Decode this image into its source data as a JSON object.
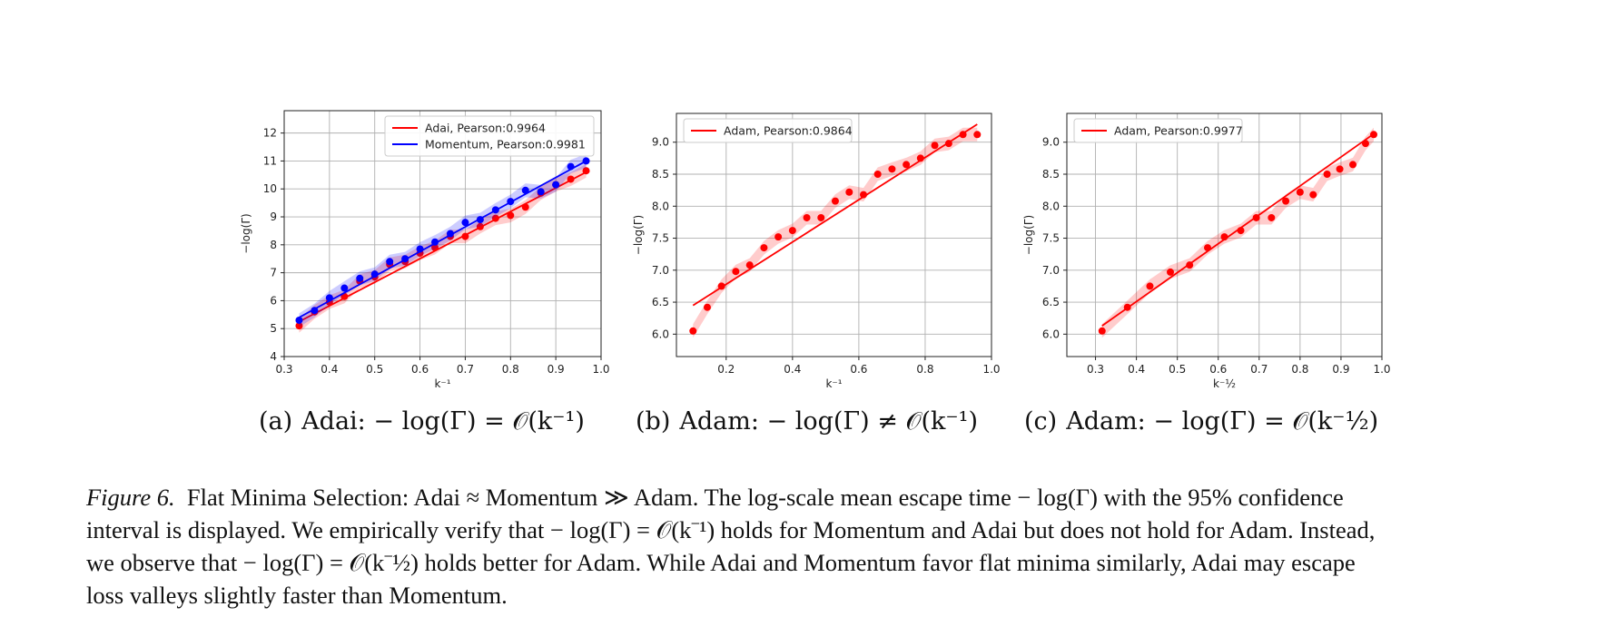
{
  "chart_data": [
    {
      "type": "scatter",
      "xlabel": "k⁻¹",
      "ylabel": "−log(Γ)",
      "xlim": [
        0.3,
        1.0
      ],
      "ylim": [
        4,
        12.8
      ],
      "xticks": [
        "0.3",
        "0.4",
        "0.5",
        "0.6",
        "0.7",
        "0.8",
        "0.9",
        "1.0"
      ],
      "yticks": [
        "4",
        "5",
        "6",
        "7",
        "8",
        "9",
        "10",
        "11",
        "12"
      ],
      "grid": true,
      "legend_position": "top-right",
      "series": [
        {
          "name": "Adai, Pearson:0.9964",
          "color": "#ff0000",
          "x": [
            0.333,
            0.367,
            0.4,
            0.433,
            0.467,
            0.5,
            0.533,
            0.567,
            0.6,
            0.633,
            0.667,
            0.7,
            0.733,
            0.767,
            0.8,
            0.833,
            0.867,
            0.9,
            0.933,
            0.967
          ],
          "y": [
            5.1,
            5.6,
            5.95,
            6.15,
            6.7,
            6.85,
            7.3,
            7.4,
            7.7,
            7.9,
            8.3,
            8.3,
            8.65,
            8.95,
            9.05,
            9.35,
            9.85,
            10.15,
            10.35,
            10.65
          ],
          "fit": [
            [
              0.333,
              5.25
            ],
            [
              0.967,
              10.6
            ]
          ]
        },
        {
          "name": "Momentum, Pearson:0.9981",
          "color": "#0000ff",
          "x": [
            0.333,
            0.367,
            0.4,
            0.433,
            0.467,
            0.5,
            0.533,
            0.567,
            0.6,
            0.633,
            0.667,
            0.7,
            0.733,
            0.767,
            0.8,
            0.833,
            0.867,
            0.9,
            0.933,
            0.967
          ],
          "y": [
            5.3,
            5.65,
            6.1,
            6.45,
            6.8,
            6.95,
            7.4,
            7.5,
            7.85,
            8.1,
            8.4,
            8.8,
            8.9,
            9.25,
            9.55,
            9.95,
            9.9,
            10.15,
            10.8,
            11.0
          ],
          "fit": [
            [
              0.333,
              5.4
            ],
            [
              0.967,
              11.0
            ]
          ]
        }
      ]
    },
    {
      "type": "scatter",
      "xlabel": "k⁻¹",
      "ylabel": "−log(Γ)",
      "xlim": [
        0.05,
        1.0
      ],
      "ylim": [
        5.65,
        9.45
      ],
      "xticks": [
        "0.2",
        "0.4",
        "0.6",
        "0.8",
        "1.0"
      ],
      "yticks": [
        "6.0",
        "6.5",
        "7.0",
        "7.5",
        "8.0",
        "8.5",
        "9.0"
      ],
      "grid": true,
      "legend_position": "top-left",
      "series": [
        {
          "name": "Adam, Pearson:0.9864",
          "color": "#ff0000",
          "x": [
            0.1,
            0.143,
            0.186,
            0.229,
            0.271,
            0.314,
            0.357,
            0.4,
            0.443,
            0.486,
            0.529,
            0.571,
            0.614,
            0.657,
            0.7,
            0.743,
            0.786,
            0.829,
            0.871,
            0.914,
            0.957
          ],
          "y": [
            6.05,
            6.42,
            6.75,
            6.98,
            7.08,
            7.35,
            7.52,
            7.62,
            7.82,
            7.82,
            8.08,
            8.22,
            8.18,
            8.5,
            8.58,
            8.65,
            8.75,
            8.95,
            8.98,
            9.12,
            9.12
          ],
          "fit": [
            [
              0.1,
              6.45
            ],
            [
              0.957,
              9.28
            ]
          ]
        }
      ]
    },
    {
      "type": "scatter",
      "xlabel": "k⁻½",
      "ylabel": "−log(Γ)",
      "xlim": [
        0.23,
        1.0
      ],
      "ylim": [
        5.65,
        9.45
      ],
      "xticks": [
        "0.3",
        "0.4",
        "0.5",
        "0.6",
        "0.7",
        "0.8",
        "0.9",
        "1.0"
      ],
      "yticks": [
        "6.0",
        "6.5",
        "7.0",
        "7.5",
        "8.0",
        "8.5",
        "9.0"
      ],
      "grid": true,
      "legend_position": "top-left",
      "series": [
        {
          "name": "Adam, Pearson:0.9977",
          "color": "#ff0000",
          "x": [
            0.316,
            0.378,
            0.433,
            0.483,
            0.53,
            0.574,
            0.615,
            0.655,
            0.693,
            0.73,
            0.765,
            0.8,
            0.832,
            0.866,
            0.897,
            0.929,
            0.96,
            0.98
          ],
          "y": [
            6.05,
            6.42,
            6.75,
            6.97,
            7.08,
            7.35,
            7.52,
            7.62,
            7.82,
            7.82,
            8.08,
            8.22,
            8.18,
            8.5,
            8.58,
            8.65,
            8.98,
            9.12
          ],
          "fit": [
            [
              0.316,
              6.13
            ],
            [
              0.98,
              9.13
            ]
          ]
        }
      ]
    }
  ],
  "captions": {
    "a": {
      "label": "(a)",
      "text": "Adai: − log(Γ) = 𝒪(k⁻¹)"
    },
    "b": {
      "label": "(b)",
      "text": "Adam: − log(Γ) ≠ 𝒪(k⁻¹)"
    },
    "c": {
      "label": "(c)",
      "text": "Adam: − log(Γ) = 𝒪(k⁻½)"
    }
  },
  "figure_caption": {
    "label": "Figure 6.",
    "line1": "Flat Minima Selection: Adai ≈ Momentum ≫ Adam. The log-scale mean escape time − log(Γ) with the 95% confidence",
    "line2": "interval is displayed. We empirically verify that − log(Γ) = 𝒪(k⁻¹) holds for Momentum and Adai but does not hold for Adam. Instead,",
    "line3": "we observe that − log(Γ) = 𝒪(k⁻½) holds better for Adam. While Adai and Momentum favor flat minima similarly, Adai may escape",
    "line4": "loss valleys slightly faster than Momentum."
  }
}
